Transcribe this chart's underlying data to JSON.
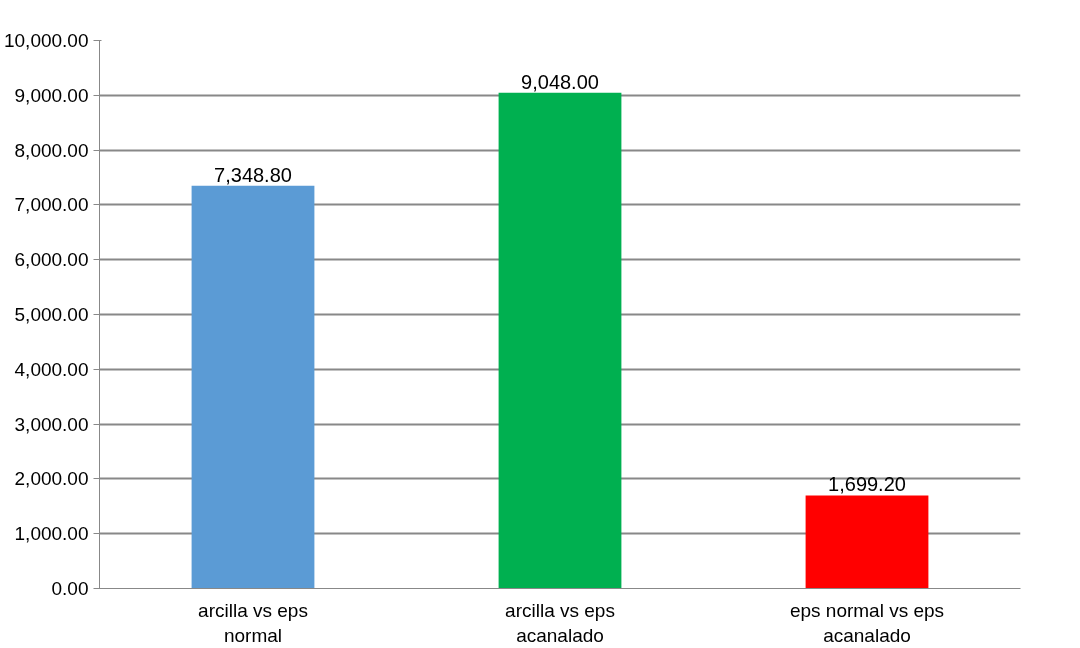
{
  "chart_data": {
    "type": "bar",
    "categories": [
      "arcilla vs eps normal",
      "arcilla vs eps acanalado",
      "eps normal vs eps acanalado"
    ],
    "values": [
      7348.8,
      9048.0,
      1699.2
    ],
    "colors": [
      "#5b9bd5",
      "#00b050",
      "#ff0000"
    ],
    "value_labels": [
      "7,348.80",
      "9,048.00",
      "1,699.20"
    ],
    "ylim": [
      0,
      10000
    ],
    "yticks": [
      {
        "value": 0,
        "label": "0.00"
      },
      {
        "value": 1000,
        "label": "1,000.00"
      },
      {
        "value": 2000,
        "label": "2,000.00"
      },
      {
        "value": 3000,
        "label": "3,000.00"
      },
      {
        "value": 4000,
        "label": "4,000.00"
      },
      {
        "value": 5000,
        "label": "5,000.00"
      },
      {
        "value": 6000,
        "label": "6,000.00"
      },
      {
        "value": 7000,
        "label": "7,000.00"
      },
      {
        "value": 8000,
        "label": "8,000.00"
      },
      {
        "value": 9000,
        "label": "9,000.00"
      },
      {
        "value": 10000,
        "label": "10,000.00"
      }
    ],
    "grid": "y"
  }
}
